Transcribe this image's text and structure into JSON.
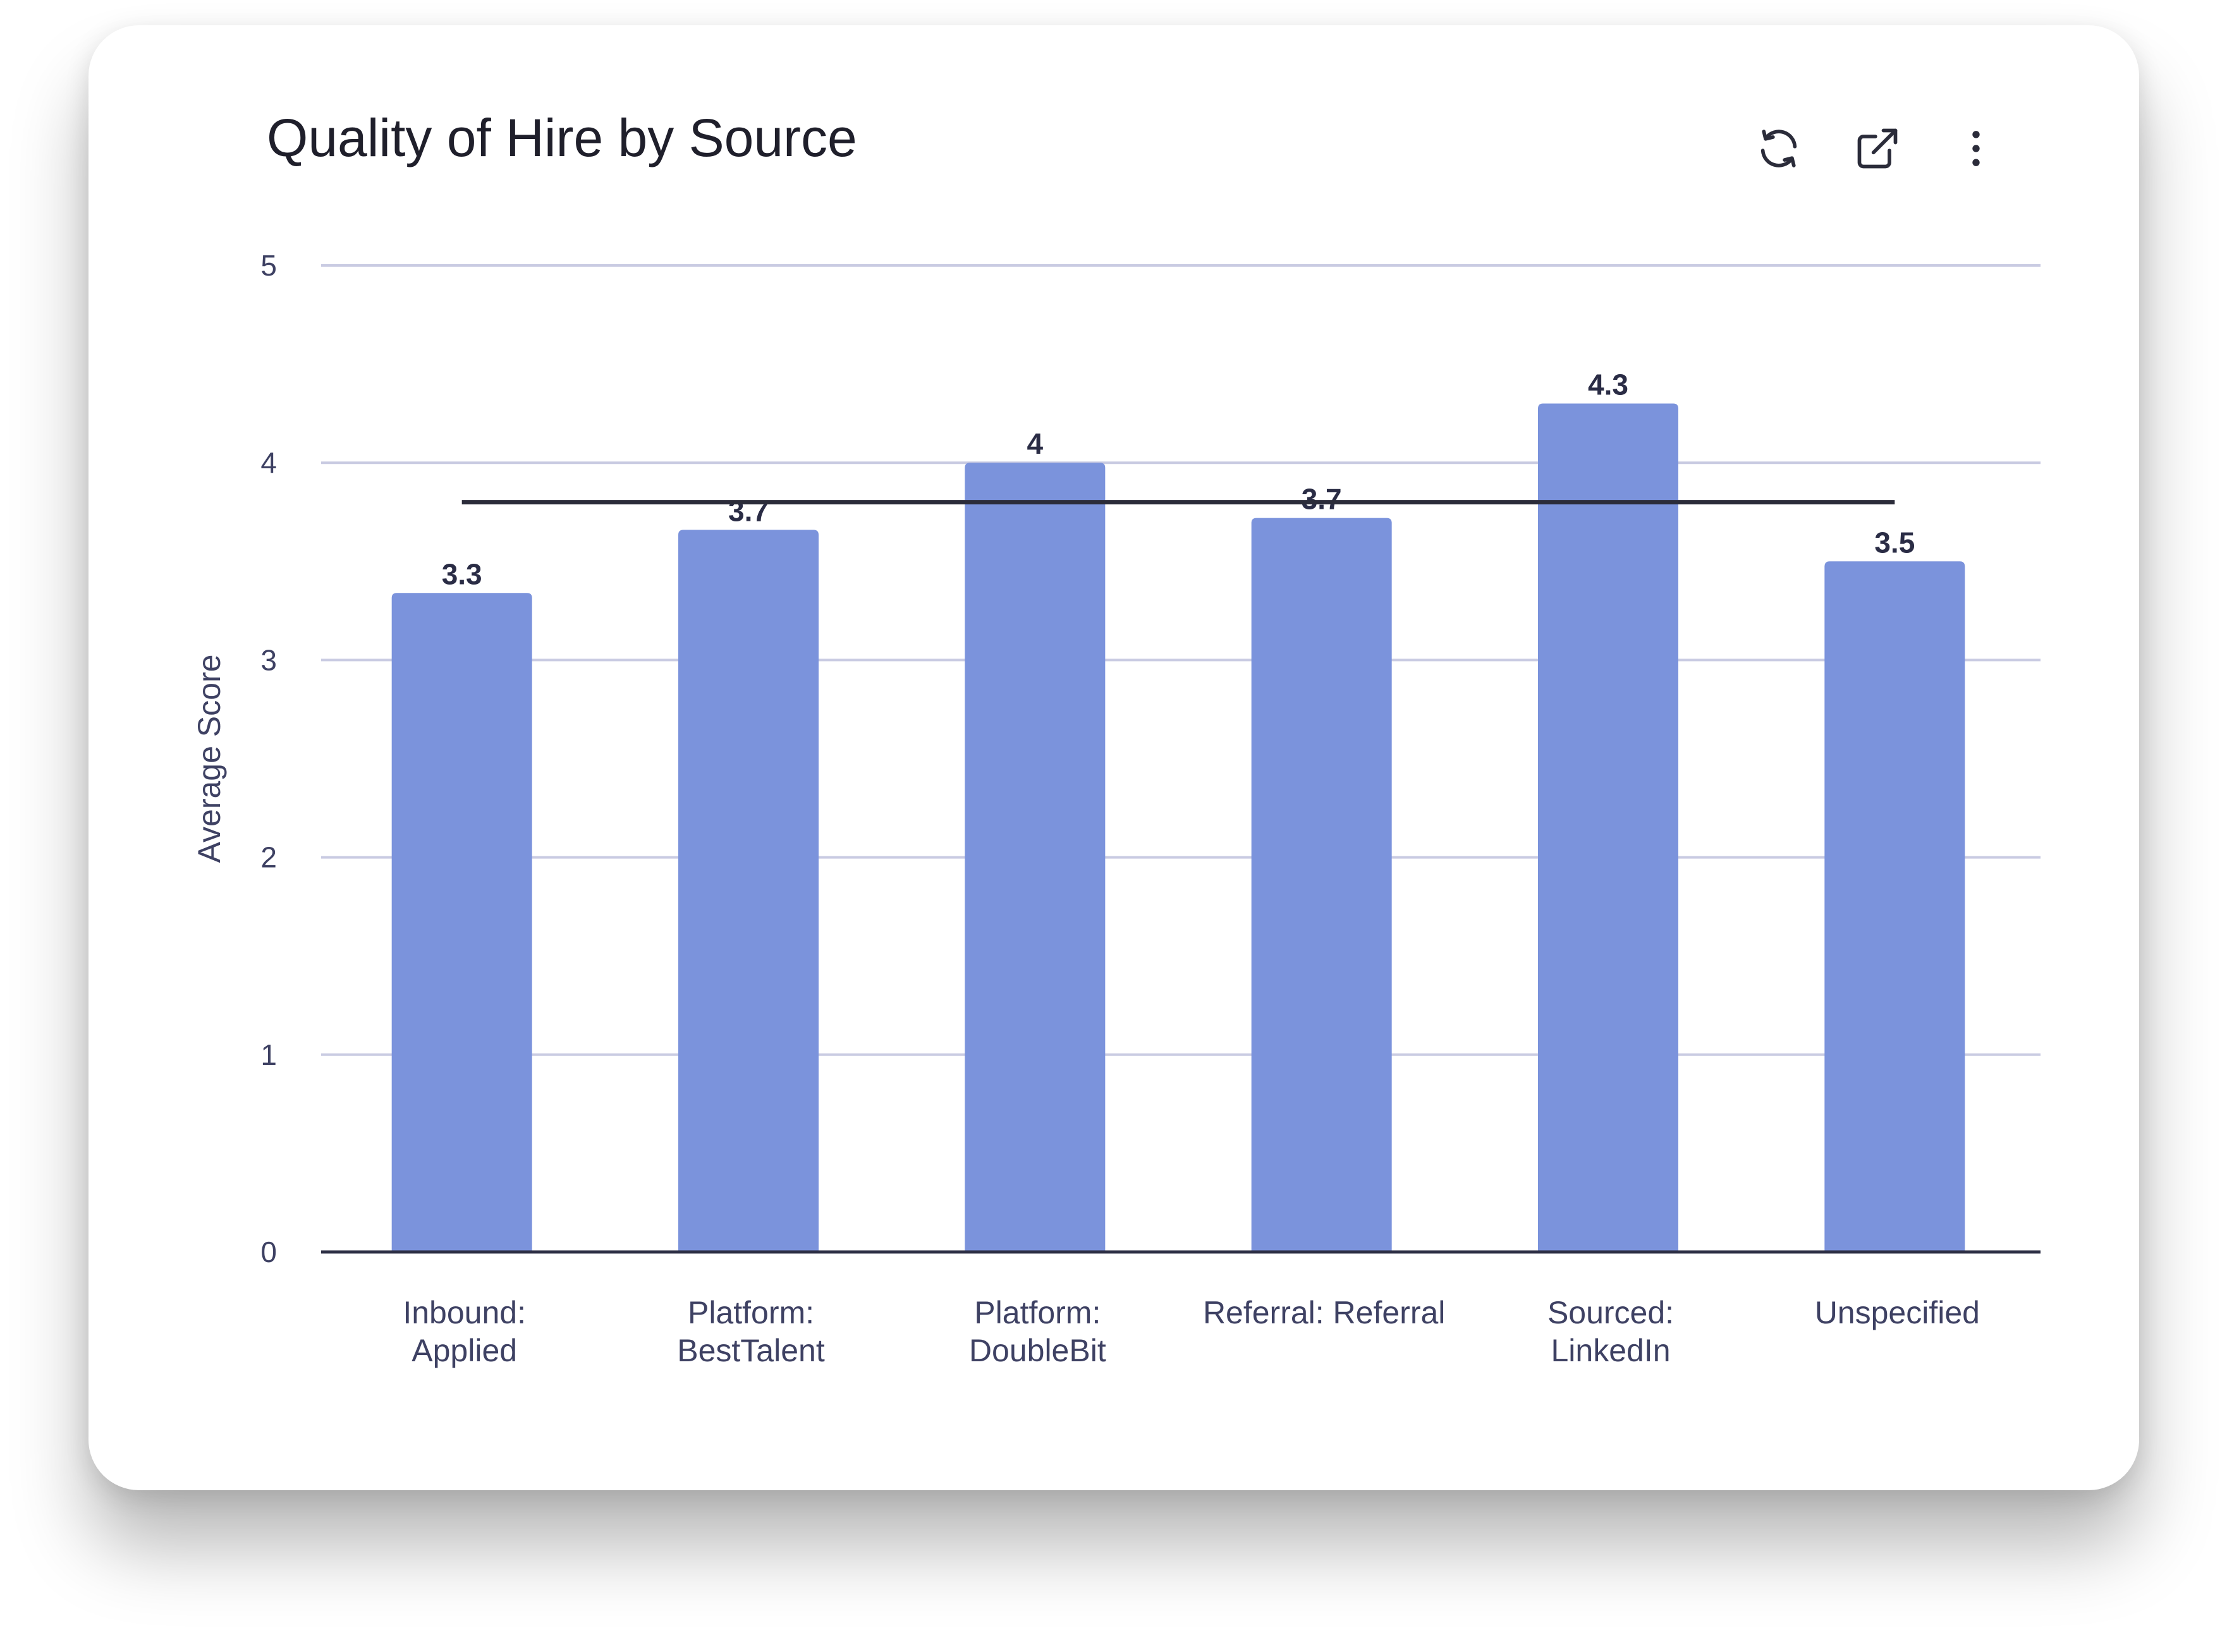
{
  "card": {
    "title": "Quality of Hire by Source"
  },
  "toolbar": {
    "icons": [
      "refresh-icon",
      "open-external-icon",
      "more-vertical-icon"
    ]
  },
  "chart_data": {
    "type": "bar",
    "title": "Quality of Hire by Source",
    "ylabel": "Average Score",
    "xlabel": "",
    "ylim": [
      0,
      5
    ],
    "yticks": [
      0,
      1,
      2,
      3,
      4,
      5
    ],
    "grid": true,
    "categories": [
      [
        "Inbound:",
        "Applied"
      ],
      [
        "Platform:",
        "BestTalent"
      ],
      [
        "Platform:",
        "DoubleBit"
      ],
      [
        "Referral: Referral"
      ],
      [
        "Sourced:",
        "LinkedIn"
      ],
      [
        "Unspecified"
      ]
    ],
    "values": [
      3.34,
      3.66,
      4.0,
      3.72,
      4.3,
      3.5
    ],
    "data_labels": [
      "3.3",
      "3.7",
      "4",
      "3.7",
      "4.3",
      "3.5"
    ],
    "reference_line": {
      "value": 3.8
    },
    "colors": {
      "bar": "#7b93dc",
      "grid": "#c9cbe2",
      "axis": "#2d2f45",
      "reference_line": "#2b2c3a",
      "tick_text": "#3e4163",
      "data_label": "#2a2c45"
    }
  }
}
